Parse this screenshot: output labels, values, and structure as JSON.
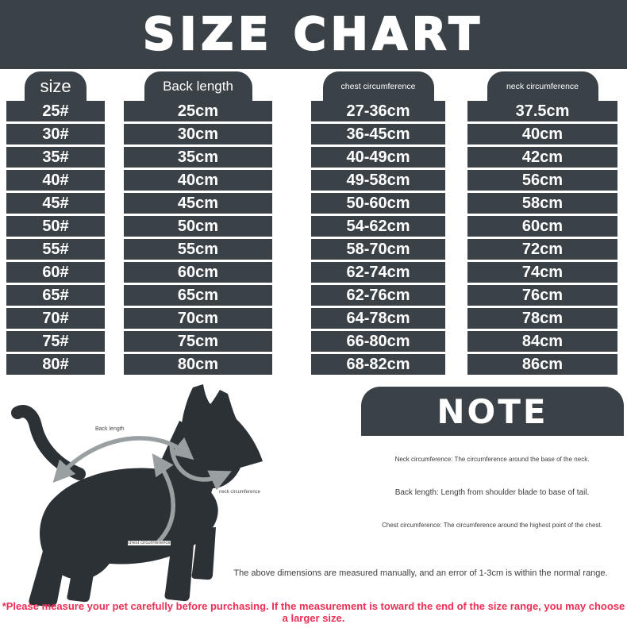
{
  "title": "SIZE CHART",
  "colors": {
    "panel_dark": "#3a4147",
    "dog_silhouette": "#2c3136",
    "arrow_gray": "#9aa0a1",
    "accent_red": "#ed2f55",
    "text_white": "#ffffff",
    "note_text": "#3d3d3d"
  },
  "chart_data": {
    "type": "table",
    "title": "SIZE CHART",
    "columns": [
      "size",
      "Back length",
      "chest circumference",
      "neck circumference"
    ],
    "rows": [
      [
        "25#",
        "25cm",
        "27-36cm",
        "37.5cm"
      ],
      [
        "30#",
        "30cm",
        "36-45cm",
        "40cm"
      ],
      [
        "35#",
        "35cm",
        "40-49cm",
        "42cm"
      ],
      [
        "40#",
        "40cm",
        "49-58cm",
        "56cm"
      ],
      [
        "45#",
        "45cm",
        "50-60cm",
        "58cm"
      ],
      [
        "50#",
        "50cm",
        "54-62cm",
        "60cm"
      ],
      [
        "55#",
        "55cm",
        "58-70cm",
        "72cm"
      ],
      [
        "60#",
        "60cm",
        "62-74cm",
        "74cm"
      ],
      [
        "65#",
        "65cm",
        "62-76cm",
        "76cm"
      ],
      [
        "70#",
        "70cm",
        "64-78cm",
        "78cm"
      ],
      [
        "75#",
        "75cm",
        "66-80cm",
        "84cm"
      ],
      [
        "80#",
        "80cm",
        "68-82cm",
        "86cm"
      ]
    ]
  },
  "diagram": {
    "back_length_label": "Back length",
    "neck_label": "neck circumference",
    "chest_label": "chest circumference"
  },
  "note": {
    "title": "NOTE",
    "items": [
      "Neck circumference: The circumference around the base of the neck.",
      "Back length: Length from shoulder blade to base of tail.",
      "Chest circumference: The circumference around the highest point of the chest."
    ],
    "tolerance_note": "The above dimensions are measured manually, and an error of 1-3cm is within the normal range.",
    "disclaimer": "*Please measure your pet carefully before purchasing. If the measurement is toward the end of the size range, you may choose a larger size."
  }
}
